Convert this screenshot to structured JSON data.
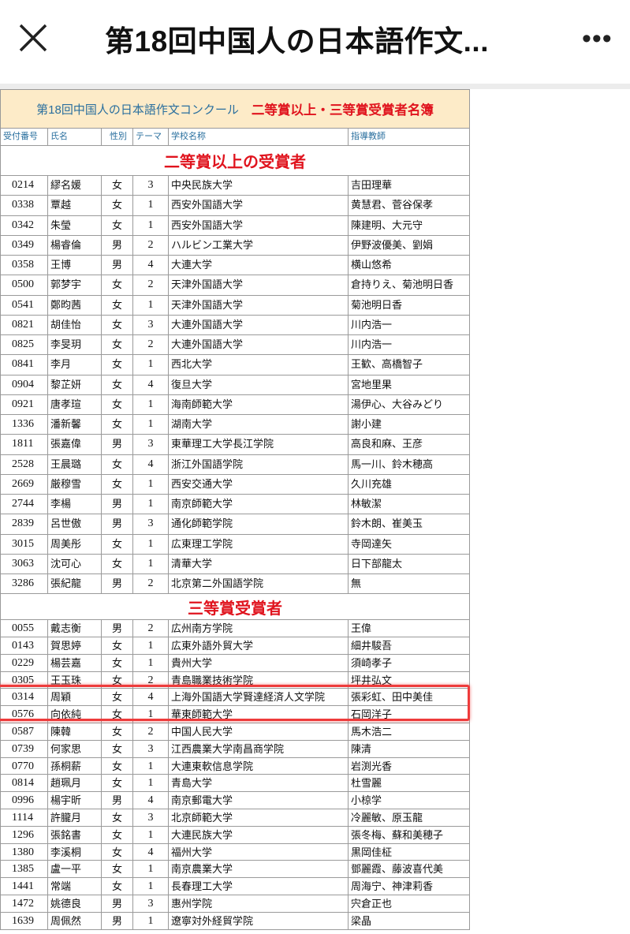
{
  "appbar": {
    "title": "第18回中国人の日本語作文...",
    "close_icon": "close-icon",
    "more_icon": "more-horizontal-icon",
    "more_label": "•••"
  },
  "sheet": {
    "title_main": "第18回中国人の日本語作文コンクール",
    "title_sub": "二等賞以上・三等賞受賞者名簿",
    "title_bg": "#fdebc8",
    "accent_red": "#e0141e",
    "header_blue": "#2a6f9e",
    "columns": [
      "受付番号",
      "氏名",
      "性別",
      "テーマ",
      "学校名称",
      "指導教師"
    ],
    "sections": [
      {
        "title": "二等賞以上の受賞者",
        "rows": [
          [
            "0214",
            "繆名媛",
            "女",
            "3",
            "中央民族大学",
            "吉田理華"
          ],
          [
            "0338",
            "覃越",
            "女",
            "1",
            "西安外国語大学",
            "黄慧君、菅谷保孝"
          ],
          [
            "0342",
            "朱瑩",
            "女",
            "1",
            "西安外国語大学",
            "陳建明、大元守"
          ],
          [
            "0349",
            "楊睿倫",
            "男",
            "2",
            "ハルビン工業大学",
            "伊野波優美、劉娟"
          ],
          [
            "0358",
            "王博",
            "男",
            "4",
            "大連大学",
            "横山悠希"
          ],
          [
            "0500",
            "郭梦宇",
            "女",
            "2",
            "天津外国語大学",
            "倉持りえ、菊池明日香"
          ],
          [
            "0541",
            "鄭昀茜",
            "女",
            "1",
            "天津外国語大学",
            "菊池明日香"
          ],
          [
            "0821",
            "胡佳怡",
            "女",
            "3",
            "大連外国語大学",
            "川内浩一"
          ],
          [
            "0825",
            "李旻玥",
            "女",
            "2",
            "大連外国語大学",
            "川内浩一"
          ],
          [
            "0841",
            "李月",
            "女",
            "1",
            "西北大学",
            "王歓、高橋智子"
          ],
          [
            "0904",
            "黎芷妍",
            "女",
            "4",
            "復旦大学",
            "宮地里果"
          ],
          [
            "0921",
            "唐孝瑄",
            "女",
            "1",
            "海南師範大学",
            "湯伊心、大谷みどり"
          ],
          [
            "1336",
            "潘新馨",
            "女",
            "1",
            "湖南大学",
            "謝小建"
          ],
          [
            "1811",
            "張嘉偉",
            "男",
            "3",
            "東華理工大学長江学院",
            "高良和麻、王彦"
          ],
          [
            "2528",
            "王晨璐",
            "女",
            "4",
            "浙江外国語学院",
            "馬一川、鈴木穂高"
          ],
          [
            "2669",
            "厳穆雪",
            "女",
            "1",
            "西安交通大学",
            "久川充雄"
          ],
          [
            "2744",
            "李楊",
            "男",
            "1",
            "南京師範大学",
            "林敏潔"
          ],
          [
            "2839",
            "呂世傲",
            "男",
            "3",
            "通化師範学院",
            "鈴木朗、崔美玉"
          ],
          [
            "3015",
            "周美彤",
            "女",
            "1",
            "広東理工学院",
            "寺岡達矢"
          ],
          [
            "3063",
            "沈可心",
            "女",
            "1",
            "清華大学",
            "日下部龍太"
          ],
          [
            "3286",
            "張紀龍",
            "男",
            "2",
            "北京第二外国語学院",
            "無"
          ]
        ]
      },
      {
        "title": "三等賞受賞者",
        "rows": [
          [
            "0055",
            "戴志衡",
            "男",
            "2",
            "広州南方学院",
            "王偉"
          ],
          [
            "0143",
            "賀思婷",
            "女",
            "1",
            "広東外語外貿大学",
            "細井駿吾"
          ],
          [
            "0229",
            "楊芸嘉",
            "女",
            "1",
            "貴州大学",
            "須崎孝子"
          ],
          [
            "0305",
            "王玉珠",
            "女",
            "2",
            "青島職業技術学院",
            "坪井弘文"
          ],
          [
            "0314",
            "周穎",
            "女",
            "4",
            "上海外国語大学賢達経済人文学院",
            "張彩虹、田中美佳"
          ],
          [
            "0576",
            "向依純",
            "女",
            "1",
            "華東師範大学",
            "石岡洋子"
          ],
          [
            "0587",
            "陳韓",
            "女",
            "2",
            "中国人民大学",
            "馬木浩二"
          ],
          [
            "0739",
            "何家思",
            "女",
            "3",
            "江西農業大学南昌商学院",
            "陳清"
          ],
          [
            "0770",
            "孫桐薪",
            "女",
            "1",
            "大連東軟信息学院",
            "岩渕光香"
          ],
          [
            "0814",
            "趙珮月",
            "女",
            "1",
            "青島大学",
            "杜雪麗"
          ],
          [
            "0996",
            "楊宇昕",
            "男",
            "4",
            "南京郵電大学",
            "小椋学"
          ],
          [
            "1114",
            "許朧月",
            "女",
            "3",
            "北京師範大学",
            "冷麗敏、原玉龍"
          ],
          [
            "1296",
            "張銘書",
            "女",
            "1",
            "大連民族大学",
            "張冬梅、蘇和美穂子"
          ],
          [
            "1380",
            "李溪桐",
            "女",
            "4",
            "福州大学",
            "黒岡佳柾"
          ],
          [
            "1385",
            "盧一平",
            "女",
            "1",
            "南京農業大学",
            "鄧麗霞、藤波喜代美"
          ],
          [
            "1441",
            "常端",
            "女",
            "1",
            "長春理工大学",
            "周海宁、神津莉香"
          ],
          [
            "1472",
            "姚德良",
            "男",
            "3",
            "惠州学院",
            "宍倉正也"
          ],
          [
            "1639",
            "周佩然",
            "男",
            "1",
            "遼寧対外経貿学院",
            "梁晶"
          ]
        ]
      }
    ],
    "highlight_row": "0314",
    "highlight_color": "#ee3b3b"
  }
}
